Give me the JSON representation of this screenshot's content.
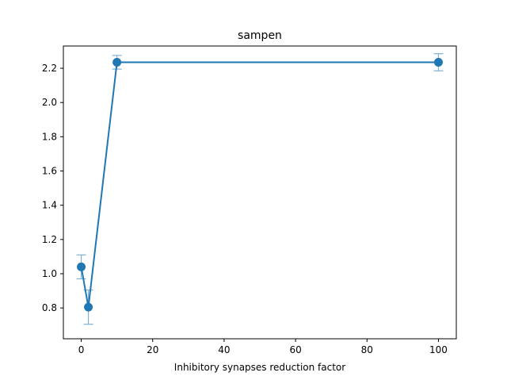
{
  "chart_data": {
    "type": "line",
    "title": "sampen",
    "xlabel": "Inhibitory synapses reduction factor",
    "ylabel": "",
    "xlim": [
      -5,
      105
    ],
    "ylim": [
      0.62,
      2.33
    ],
    "x_ticks": [
      0,
      20,
      40,
      60,
      80,
      100
    ],
    "y_ticks": [
      0.8,
      1.0,
      1.2,
      1.4,
      1.6,
      1.8,
      2.0,
      2.2
    ],
    "x_tick_labels": [
      "0",
      "20",
      "40",
      "60",
      "80",
      "100"
    ],
    "y_tick_labels": [
      "0.8",
      "1.0",
      "1.2",
      "1.4",
      "1.6",
      "1.8",
      "2.0",
      "2.2"
    ],
    "grid": false,
    "series": [
      {
        "x": [
          0,
          2,
          10,
          100
        ],
        "y": [
          1.04,
          0.805,
          2.235,
          2.235
        ],
        "error": [
          0.07,
          0.1,
          0.04,
          0.05
        ],
        "color": "#1f77b4",
        "errorbar_color": "#7fb2d6",
        "marker": "circle"
      }
    ]
  }
}
